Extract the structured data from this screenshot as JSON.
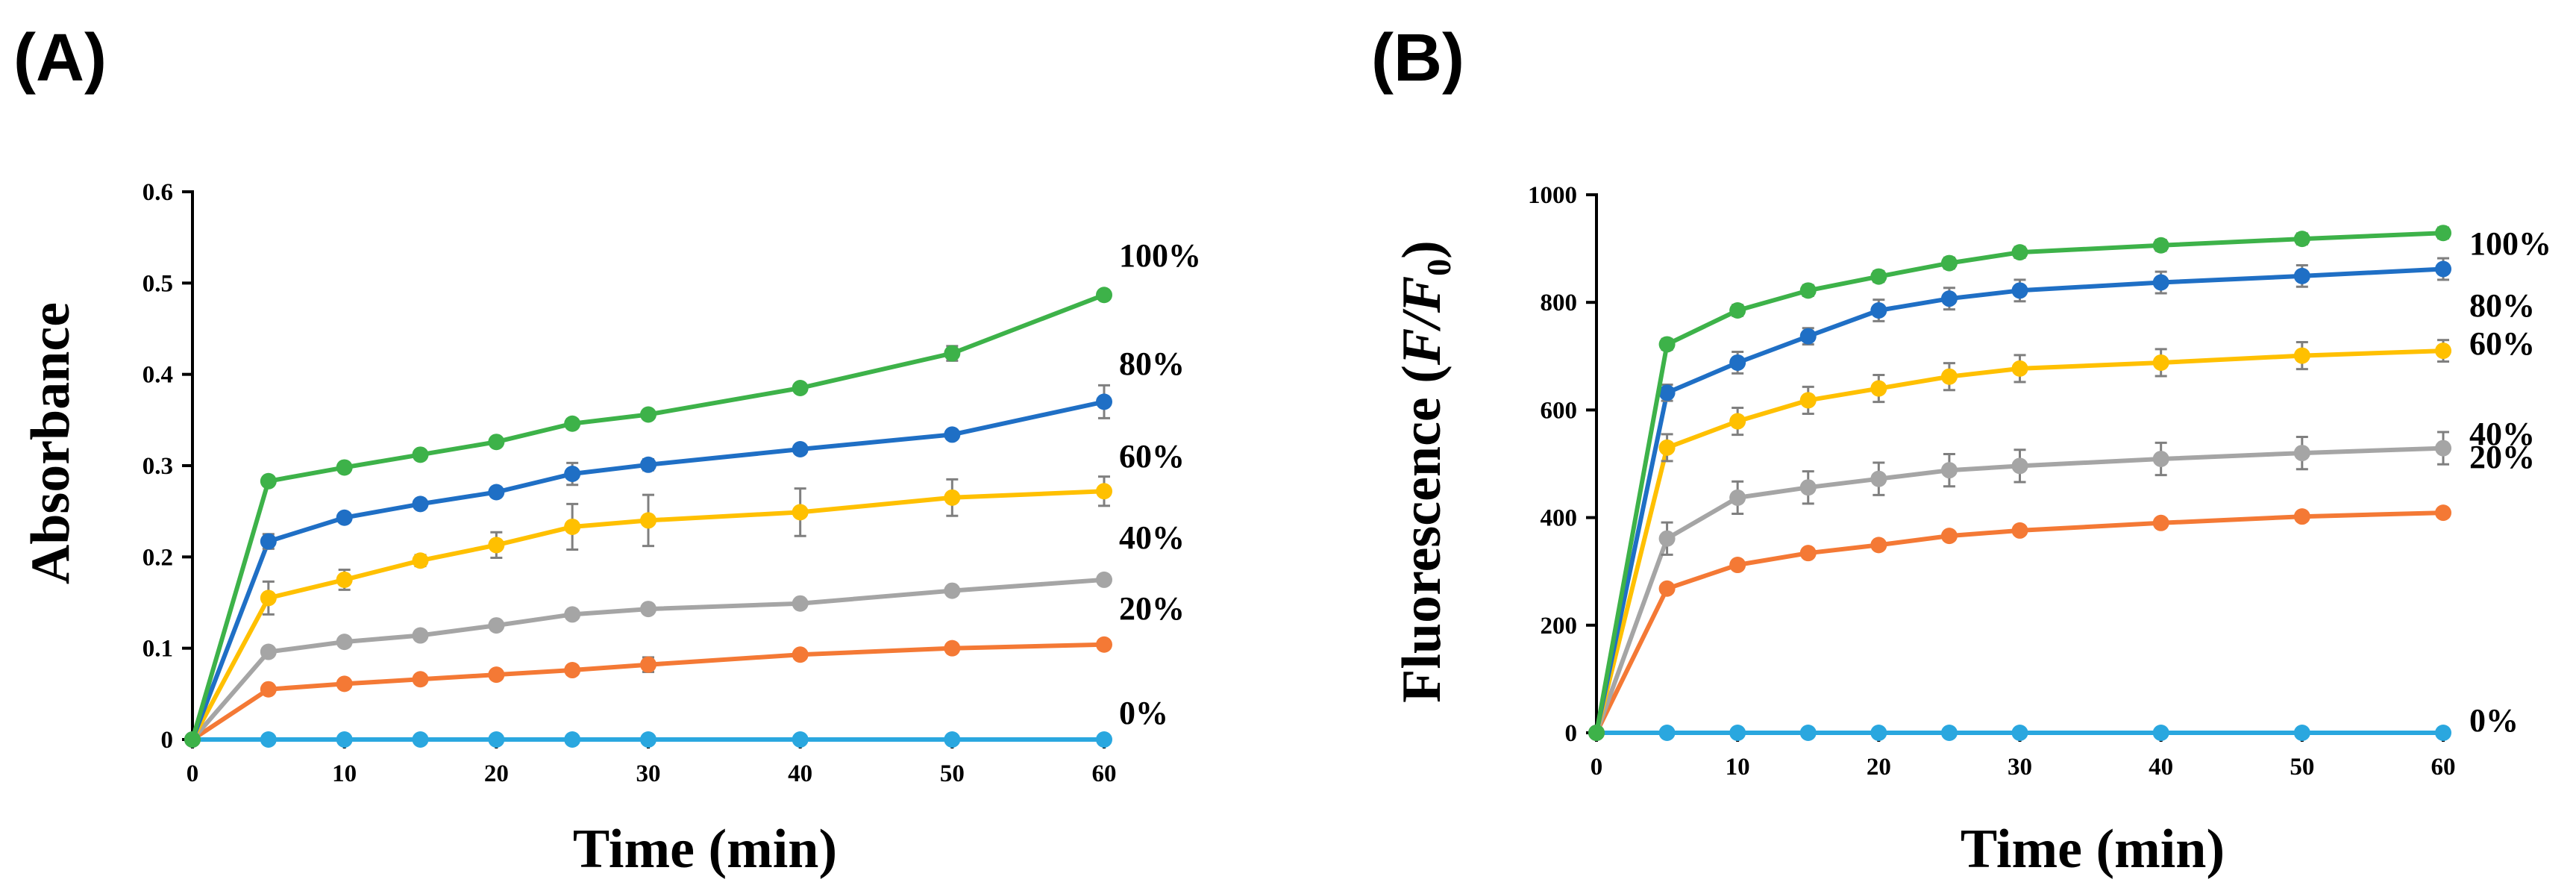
{
  "chart_data": [
    {
      "id": "A",
      "type": "line",
      "panel_label": "(A)",
      "xlabel": "Time (min)",
      "ylabel": "Absorbance",
      "ylabel_main": "Absorbance",
      "xlim": [
        0,
        60
      ],
      "ylim": [
        0,
        0.6
      ],
      "xticks": [
        0,
        10,
        20,
        30,
        40,
        50,
        60
      ],
      "yticks": [
        0,
        0.1,
        0.2,
        0.3,
        0.4,
        0.5,
        0.6
      ],
      "ytick_labels": [
        "0",
        "0.1",
        "0.2",
        "0.3",
        "0.4",
        "0.5",
        "0.6"
      ],
      "x": [
        0,
        5,
        10,
        15,
        20,
        25,
        30,
        40,
        50,
        60
      ],
      "grid": false,
      "series": [
        {
          "name": "100%",
          "color": "#3db249",
          "values": [
            0,
            0.283,
            0.298,
            0.312,
            0.326,
            0.346,
            0.356,
            0.385,
            0.423,
            0.487
          ],
          "errors": [
            0,
            0.004,
            0.004,
            0.004,
            0.004,
            0.005,
            0.004,
            0.004,
            0.008,
            0.005
          ]
        },
        {
          "name": "80%",
          "color": "#1f6fc5",
          "values": [
            0,
            0.217,
            0.243,
            0.258,
            0.271,
            0.291,
            0.301,
            0.318,
            0.334,
            0.37
          ],
          "errors": [
            0,
            0.008,
            0.005,
            0.005,
            0.005,
            0.012,
            0.006,
            0.005,
            0.005,
            0.018
          ]
        },
        {
          "name": "60%",
          "color": "#ffc000",
          "values": [
            0,
            0.155,
            0.175,
            0.196,
            0.213,
            0.233,
            0.24,
            0.249,
            0.265,
            0.272
          ],
          "errors": [
            0,
            0.018,
            0.011,
            0.006,
            0.014,
            0.025,
            0.028,
            0.026,
            0.02,
            0.016
          ]
        },
        {
          "name": "40%",
          "color": "#a5a5a5",
          "values": [
            0,
            0.096,
            0.107,
            0.114,
            0.125,
            0.137,
            0.143,
            0.149,
            0.163,
            0.175
          ],
          "errors": [
            0,
            0.004,
            0.004,
            0.004,
            0.004,
            0.004,
            0.004,
            0.004,
            0.004,
            0.004
          ]
        },
        {
          "name": "20%",
          "color": "#f47935",
          "values": [
            0,
            0.055,
            0.061,
            0.066,
            0.071,
            0.076,
            0.082,
            0.093,
            0.1,
            0.104
          ],
          "errors": [
            0,
            0.004,
            0.004,
            0.004,
            0.004,
            0.005,
            0.008,
            0.004,
            0.004,
            0.004
          ]
        },
        {
          "name": "0%",
          "color": "#2aa7df",
          "values": [
            0,
            0,
            0,
            0,
            0,
            0,
            0,
            0,
            0,
            0
          ],
          "errors": [
            0,
            0,
            0,
            0,
            0,
            0,
            0,
            0,
            0,
            0
          ]
        }
      ]
    },
    {
      "id": "B",
      "type": "line",
      "panel_label": "(B)",
      "xlabel": "Time (min)",
      "ylabel": "Fluorescence (F/F0)",
      "ylabel_main": "Fluorescence (",
      "ylabel_italic": "F/F",
      "ylabel_sub": "0",
      "ylabel_close": ")",
      "xlim": [
        0,
        60
      ],
      "ylim": [
        0,
        1000
      ],
      "xticks": [
        0,
        10,
        20,
        30,
        40,
        50,
        60
      ],
      "yticks": [
        0,
        200,
        400,
        600,
        800,
        1000
      ],
      "ytick_labels": [
        "0",
        "200",
        "400",
        "600",
        "800",
        "1000"
      ],
      "x": [
        0,
        5,
        10,
        15,
        20,
        25,
        30,
        40,
        50,
        60
      ],
      "grid": false,
      "series": [
        {
          "name": "100%",
          "color": "#3db249",
          "values": [
            0,
            722,
            785,
            822,
            848,
            873,
            893,
            906,
            918,
            929
          ],
          "errors": [
            0,
            10,
            10,
            10,
            10,
            10,
            10,
            10,
            10,
            10
          ]
        },
        {
          "name": "80%",
          "color": "#1f6fc5",
          "values": [
            0,
            632,
            688,
            737,
            785,
            807,
            822,
            837,
            849,
            862
          ],
          "errors": [
            0,
            15,
            20,
            15,
            20,
            20,
            20,
            20,
            20,
            20
          ]
        },
        {
          "name": "60%",
          "color": "#ffc000",
          "values": [
            0,
            530,
            579,
            618,
            640,
            662,
            677,
            688,
            701,
            710
          ],
          "errors": [
            0,
            25,
            25,
            25,
            25,
            25,
            25,
            25,
            25,
            20
          ]
        },
        {
          "name": "40%",
          "color": "#a5a5a5",
          "values": [
            0,
            361,
            437,
            456,
            472,
            488,
            496,
            509,
            520,
            529
          ],
          "errors": [
            0,
            30,
            30,
            30,
            30,
            30,
            30,
            30,
            30,
            30
          ]
        },
        {
          "name": "20%",
          "color": "#f47935",
          "values": [
            0,
            268,
            312,
            334,
            349,
            366,
            376,
            390,
            402,
            409
          ],
          "errors": [
            0,
            8,
            8,
            8,
            8,
            8,
            8,
            8,
            8,
            8
          ]
        },
        {
          "name": "0%",
          "color": "#2aa7df",
          "values": [
            0,
            0,
            0,
            0,
            0,
            0,
            0,
            0,
            0,
            0
          ],
          "errors": [
            0,
            0,
            0,
            0,
            0,
            0,
            0,
            0,
            0,
            0
          ]
        }
      ]
    }
  ]
}
